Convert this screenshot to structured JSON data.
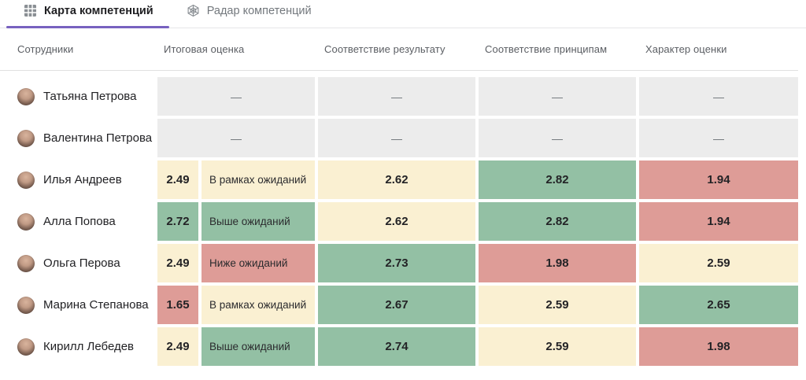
{
  "colors": {
    "accent": "#7761BF",
    "green": "#93C0A4",
    "yellow": "#FAF0D2",
    "red": "#DE9C97",
    "gray": "#ECECEC"
  },
  "tabs": [
    {
      "label": "Карта компетенций",
      "icon": "grid-icon",
      "active": true
    },
    {
      "label": "Радар компетенций",
      "icon": "radar-icon",
      "active": false
    }
  ],
  "table": {
    "columns": [
      "Сотрудники",
      "Итоговая оценка",
      "Соответствие результату",
      "Соответствие принципам",
      "Характер оценки"
    ],
    "empty_value": "—",
    "rows": [
      {
        "name": "Татьяна Петрова",
        "cells": [
          {
            "text": "—",
            "color": "gray",
            "span": 2
          },
          {
            "text": "—",
            "color": "gray"
          },
          {
            "text": "—",
            "color": "gray"
          },
          {
            "text": "—",
            "color": "gray"
          }
        ]
      },
      {
        "name": "Валентина Петрова",
        "cells": [
          {
            "text": "—",
            "color": "gray",
            "span": 2
          },
          {
            "text": "—",
            "color": "gray"
          },
          {
            "text": "—",
            "color": "gray"
          },
          {
            "text": "—",
            "color": "gray"
          }
        ]
      },
      {
        "name": "Илья Андреев",
        "cells": [
          {
            "text": "2.49",
            "color": "yellow"
          },
          {
            "text": "В рамках ожиданий",
            "color": "yellow",
            "type": "label"
          },
          {
            "text": "2.62",
            "color": "yellow"
          },
          {
            "text": "2.82",
            "color": "green"
          },
          {
            "text": "1.94",
            "color": "red"
          }
        ]
      },
      {
        "name": "Алла Попова",
        "cells": [
          {
            "text": "2.72",
            "color": "green"
          },
          {
            "text": "Выше ожиданий",
            "color": "green",
            "type": "label"
          },
          {
            "text": "2.62",
            "color": "yellow"
          },
          {
            "text": "2.82",
            "color": "green"
          },
          {
            "text": "1.94",
            "color": "red"
          }
        ]
      },
      {
        "name": "Ольга Перова",
        "cells": [
          {
            "text": "2.49",
            "color": "yellow"
          },
          {
            "text": "Ниже ожиданий",
            "color": "red",
            "type": "label"
          },
          {
            "text": "2.73",
            "color": "green"
          },
          {
            "text": "1.98",
            "color": "red"
          },
          {
            "text": "2.59",
            "color": "yellow"
          }
        ]
      },
      {
        "name": "Марина Степанова",
        "cells": [
          {
            "text": "1.65",
            "color": "red"
          },
          {
            "text": "В рамках ожиданий",
            "color": "yellow",
            "type": "label"
          },
          {
            "text": "2.67",
            "color": "green"
          },
          {
            "text": "2.59",
            "color": "yellow"
          },
          {
            "text": "2.65",
            "color": "green"
          }
        ]
      },
      {
        "name": "Кирилл Лебедев",
        "cells": [
          {
            "text": "2.49",
            "color": "yellow"
          },
          {
            "text": "Выше ожиданий",
            "color": "green",
            "type": "label"
          },
          {
            "text": "2.74",
            "color": "green"
          },
          {
            "text": "2.59",
            "color": "yellow"
          },
          {
            "text": "1.98",
            "color": "red"
          }
        ]
      }
    ]
  }
}
